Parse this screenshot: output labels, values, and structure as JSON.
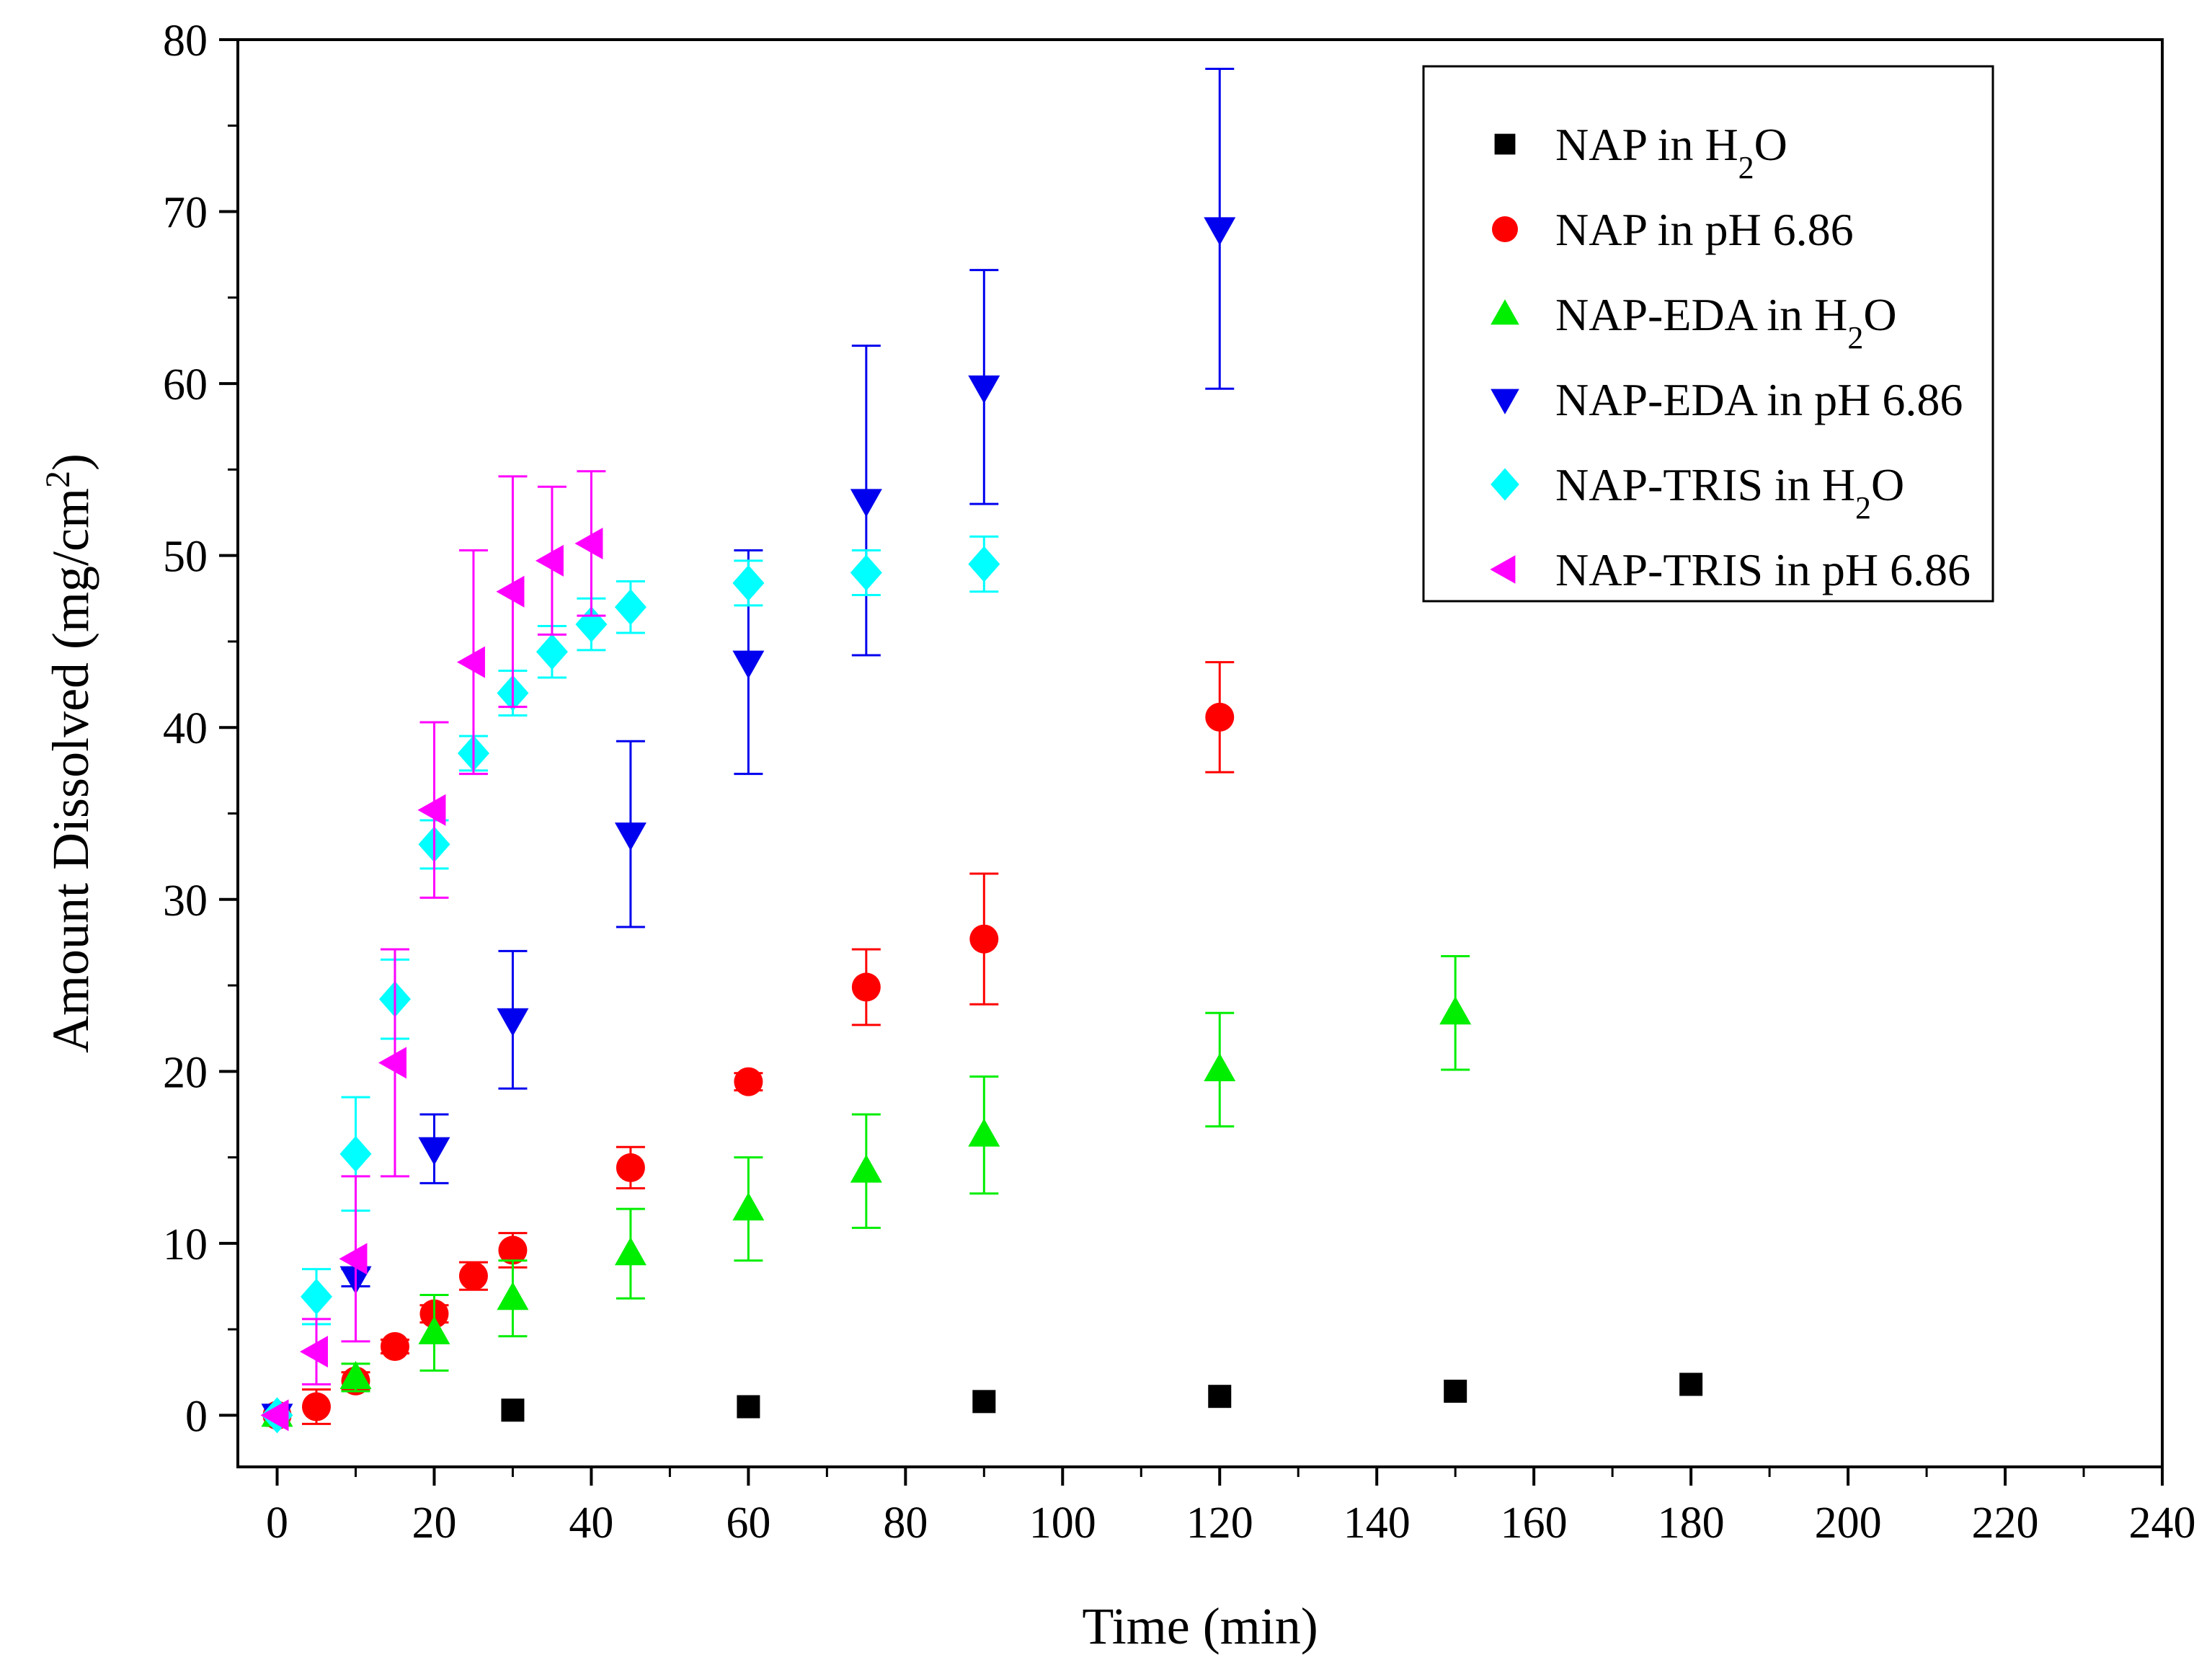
{
  "chart_data": {
    "type": "scatter",
    "title": "",
    "xlabel": "Time (min)",
    "ylabel": {
      "main": "Amount Dissolved (mg/cm",
      "sup": "2",
      "tail": ")"
    },
    "xlim": [
      -5,
      240
    ],
    "ylim": [
      -3,
      80
    ],
    "xticks": [
      0,
      20,
      40,
      60,
      80,
      100,
      120,
      140,
      160,
      180,
      200,
      220,
      240
    ],
    "yticks": [
      0,
      10,
      20,
      30,
      40,
      50,
      60,
      70,
      80
    ],
    "grid": false,
    "legend_position": "top-right",
    "series": [
      {
        "name": {
          "pre": "NAP in H",
          "sub": "2",
          "post": "O"
        },
        "marker": "square",
        "color": "#000000",
        "x": [
          0,
          30,
          60,
          90,
          120,
          150,
          180
        ],
        "y": [
          0,
          0.3,
          0.5,
          0.8,
          1.1,
          1.4,
          1.8
        ],
        "err": [
          0,
          0,
          0,
          0,
          0,
          0,
          0
        ]
      },
      {
        "name": {
          "pre": "NAP in pH 6.86",
          "sub": "",
          "post": ""
        },
        "marker": "circle",
        "color": "#ff0000",
        "x": [
          0,
          5,
          10,
          15,
          20,
          25,
          30,
          45,
          60,
          75,
          90,
          120
        ],
        "y": [
          0,
          0.5,
          2.0,
          4.0,
          5.9,
          8.1,
          9.6,
          14.4,
          19.4,
          24.9,
          27.7,
          40.6
        ],
        "err": [
          0,
          1.0,
          0.5,
          0.4,
          0.5,
          0.8,
          1.0,
          1.2,
          0.5,
          2.2,
          3.8,
          3.2
        ]
      },
      {
        "name": {
          "pre": "NAP-EDA in H",
          "sub": "2",
          "post": "O"
        },
        "marker": "triangle-up",
        "color": "#00ee00",
        "x": [
          0,
          10,
          20,
          30,
          45,
          60,
          75,
          90,
          120,
          150
        ],
        "y": [
          0,
          2.2,
          4.8,
          6.8,
          9.4,
          12.0,
          14.2,
          16.3,
          20.1,
          23.4
        ],
        "err": [
          0,
          0.8,
          2.2,
          2.2,
          2.6,
          3.0,
          3.3,
          3.4,
          3.3,
          3.3
        ]
      },
      {
        "name": {
          "pre": "NAP-EDA in pH 6.86",
          "sub": "",
          "post": ""
        },
        "marker": "triangle-down",
        "color": "#0000ee",
        "x": [
          0,
          10,
          20,
          30,
          45,
          60,
          75,
          90,
          120
        ],
        "y": [
          0,
          8.0,
          15.5,
          23.0,
          33.8,
          43.8,
          53.2,
          59.8,
          69.0
        ],
        "err": [
          0,
          0.5,
          2.0,
          4.0,
          5.4,
          6.5,
          9.0,
          6.8,
          9.3
        ]
      },
      {
        "name": {
          "pre": "NAP-TRIS in H",
          "sub": "2",
          "post": "O"
        },
        "marker": "diamond",
        "color": "#00ffff",
        "x": [
          0,
          5,
          10,
          15,
          20,
          25,
          30,
          35,
          40,
          45,
          60,
          75,
          90
        ],
        "y": [
          0,
          6.9,
          15.2,
          24.2,
          33.2,
          38.5,
          42.0,
          44.4,
          46.0,
          47.0,
          48.4,
          49.0,
          49.5
        ],
        "err": [
          0,
          1.6,
          3.3,
          2.3,
          1.4,
          1.0,
          1.3,
          1.5,
          1.5,
          1.5,
          1.3,
          1.3,
          1.6
        ]
      },
      {
        "name": {
          "pre": "NAP-TRIS in pH 6.86",
          "sub": "",
          "post": ""
        },
        "marker": "triangle-left",
        "color": "#ff00ff",
        "x": [
          0,
          5,
          10,
          15,
          20,
          25,
          30,
          35,
          40
        ],
        "y": [
          0,
          3.7,
          9.1,
          20.5,
          35.2,
          43.8,
          47.9,
          49.7,
          50.7
        ],
        "err": [
          0,
          1.9,
          4.8,
          6.6,
          5.1,
          6.5,
          6.7,
          4.3,
          4.2
        ]
      }
    ]
  }
}
